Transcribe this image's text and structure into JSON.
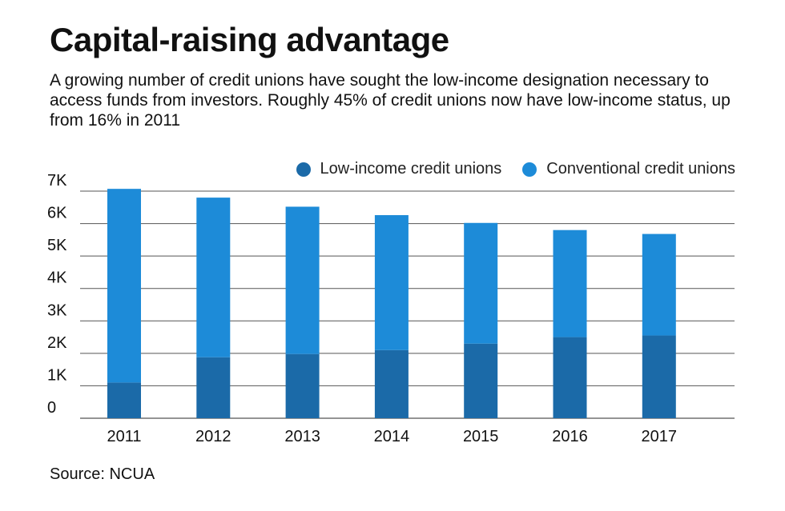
{
  "header": {
    "title": "Capital-raising advantage",
    "subtitle": "A growing number of credit unions have sought the low-income designation necessary to access funds from investors. Roughly 45% of credit unions now have low-income status, up from 16% in 2011"
  },
  "footer": {
    "source": "Source: NCUA"
  },
  "colors": {
    "low_income": "#1b6aa8",
    "conventional": "#1d8bd8",
    "gridline": "#555555"
  },
  "chart_data": {
    "type": "bar",
    "stacked": true,
    "categories": [
      "2011",
      "2012",
      "2013",
      "2014",
      "2015",
      "2016",
      "2017"
    ],
    "series": [
      {
        "name": "Low-income credit unions",
        "values": [
          1100,
          1880,
          1980,
          2100,
          2300,
          2500,
          2550
        ]
      },
      {
        "name": "Conventional credit unions",
        "values": [
          5970,
          4920,
          4540,
          4160,
          3720,
          3300,
          3130
        ]
      }
    ],
    "ylim": [
      0,
      7000
    ],
    "yticks": [
      "0",
      "1K",
      "2K",
      "3K",
      "4K",
      "5K",
      "6K",
      "7K"
    ],
    "ytick_values": [
      0,
      1000,
      2000,
      3000,
      4000,
      5000,
      6000,
      7000
    ],
    "grid": true,
    "legend_position": "top-right",
    "title": "",
    "xlabel": "",
    "ylabel": ""
  }
}
